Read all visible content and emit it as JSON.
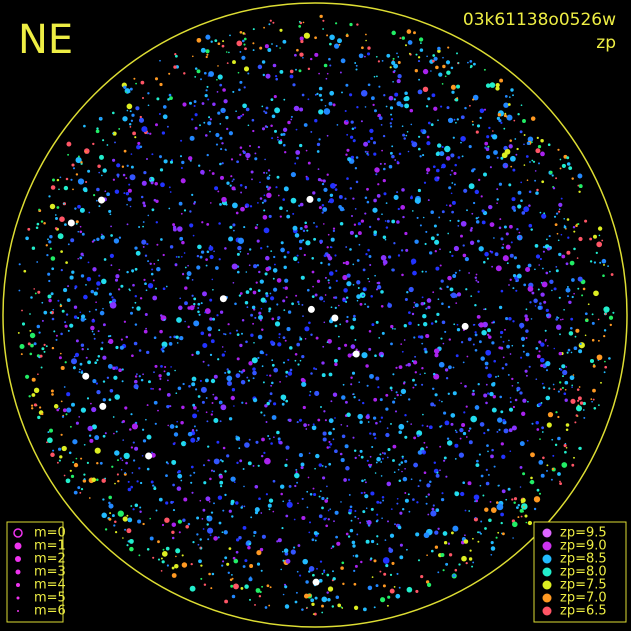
{
  "header": {
    "direction": "NE",
    "frame_id": "03k61138o0526w",
    "mode": "zp"
  },
  "magnitude_legend": [
    "m=0",
    "m=1",
    "m=2",
    "m=3",
    "m=4",
    "m=5",
    "m=6"
  ],
  "zp_legend": [
    {
      "label": "zp=9.5",
      "color": "#dd66ff"
    },
    {
      "label": "zp=9.0",
      "color": "#cc33ee"
    },
    {
      "label": "zp=8.5",
      "color": "#22bbff"
    },
    {
      "label": "zp=8.0",
      "color": "#22eecc"
    },
    {
      "label": "zp=7.5",
      "color": "#ddee22"
    },
    {
      "label": "zp=7.0",
      "color": "#ff9922"
    },
    {
      "label": "zp=6.5",
      "color": "#ff5566"
    }
  ]
}
